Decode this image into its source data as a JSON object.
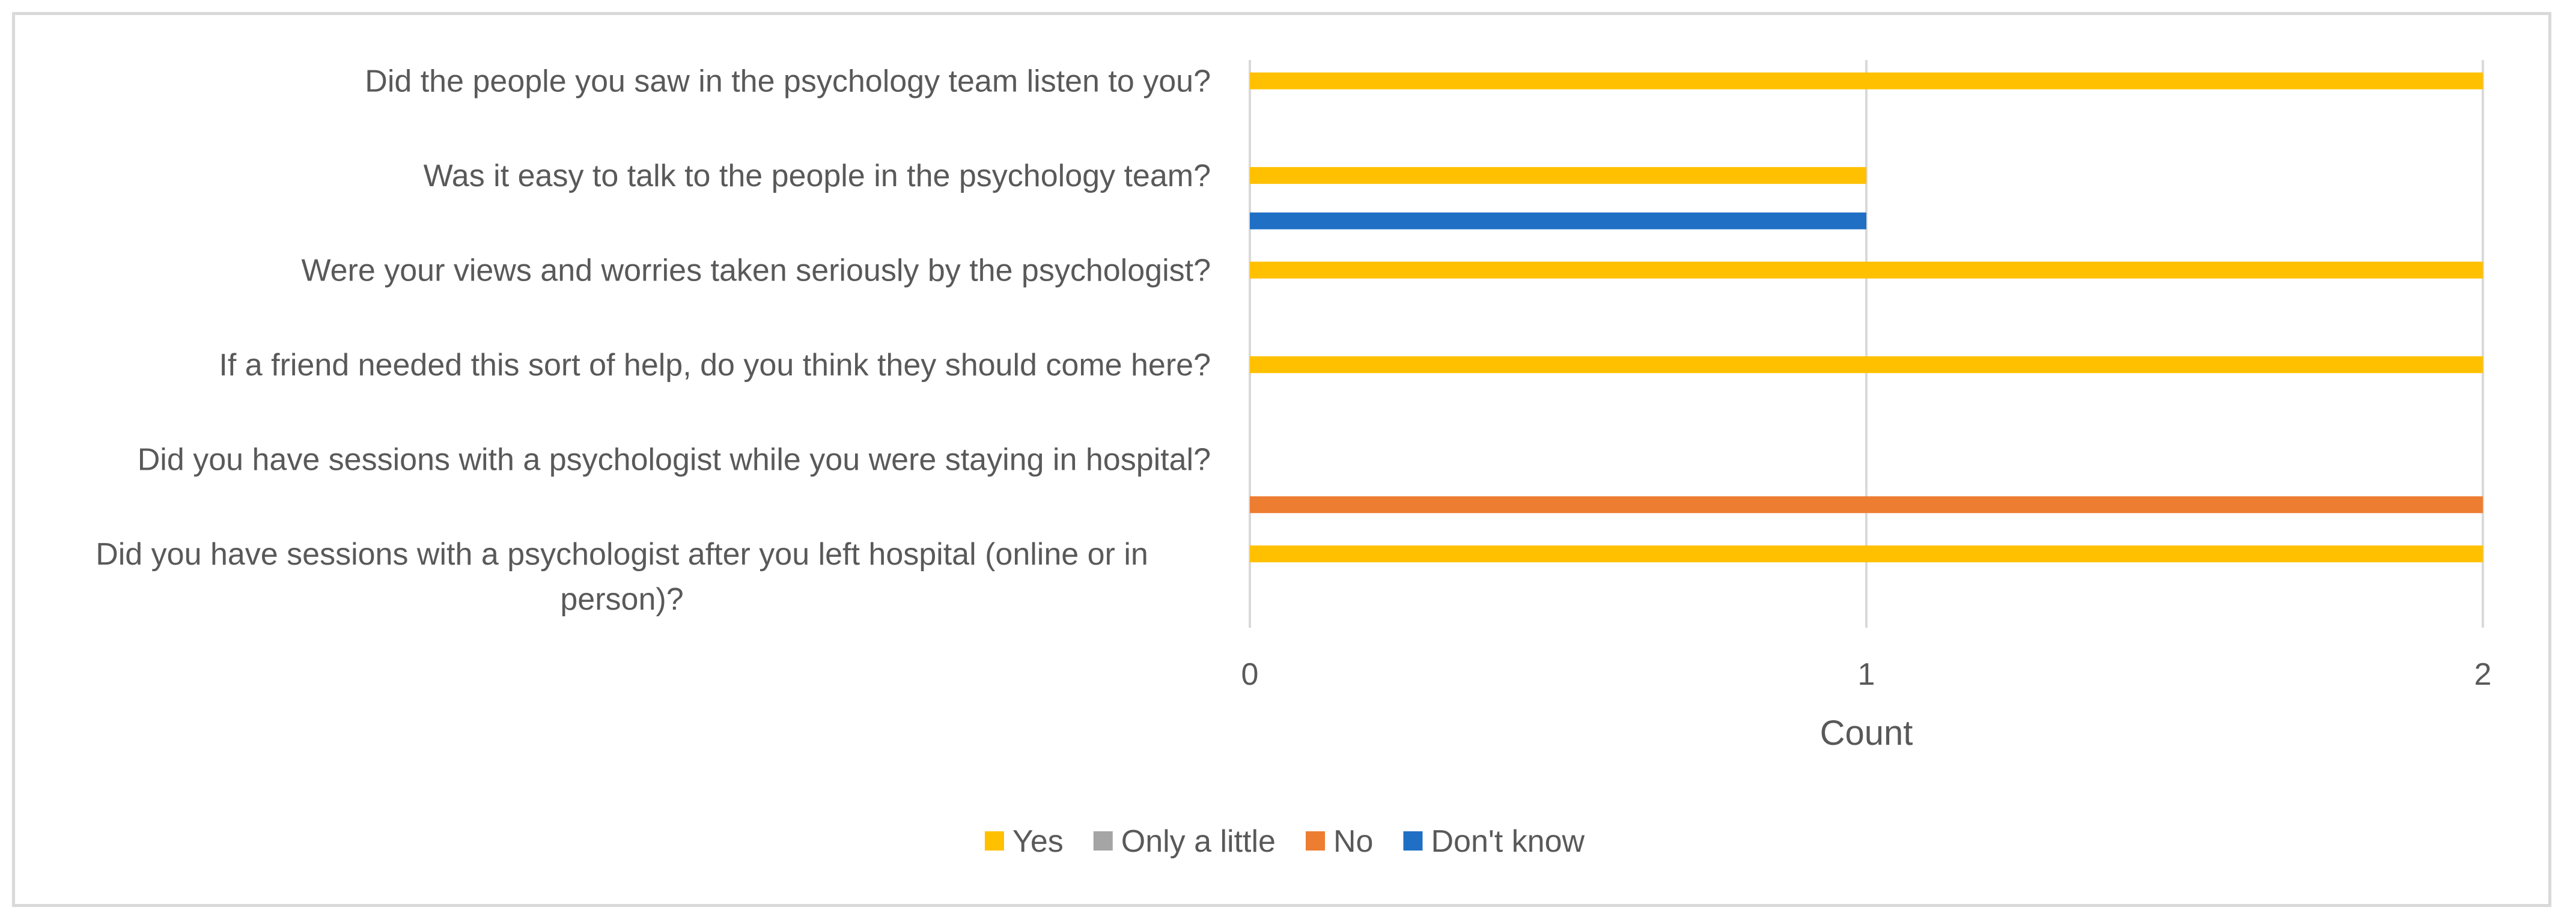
{
  "chart_data": {
    "type": "bar",
    "orientation": "horizontal",
    "categories": [
      "Did the people you saw in the psychology team listen to you?",
      "Was it easy to talk to the people in the psychology team?",
      "Were your views and worries taken seriously by the psychologist?",
      "If a friend needed this sort of help, do you think they should come here?",
      "Did you have sessions with a psychologist while you were staying in hospital?",
      "Did you have sessions with a psychologist after you left hospital (online or in person)?"
    ],
    "series": [
      {
        "name": "Yes",
        "color": "#FFC000",
        "values": [
          2,
          1,
          2,
          2,
          0,
          2
        ]
      },
      {
        "name": "Only a little",
        "color": "#A5A5A5",
        "values": [
          0,
          0,
          0,
          0,
          0,
          0
        ]
      },
      {
        "name": "No",
        "color": "#ED7D31",
        "values": [
          0,
          0,
          0,
          0,
          2,
          0
        ]
      },
      {
        "name": "Don't know",
        "color": "#1F6FC5",
        "values": [
          0,
          1,
          0,
          0,
          0,
          0
        ]
      }
    ],
    "xlabel": "Count",
    "ylabel": "",
    "xlim": [
      0,
      2
    ],
    "x_ticks": [
      "0",
      "1",
      "2"
    ],
    "grid": true,
    "legend_position": "bottom"
  }
}
